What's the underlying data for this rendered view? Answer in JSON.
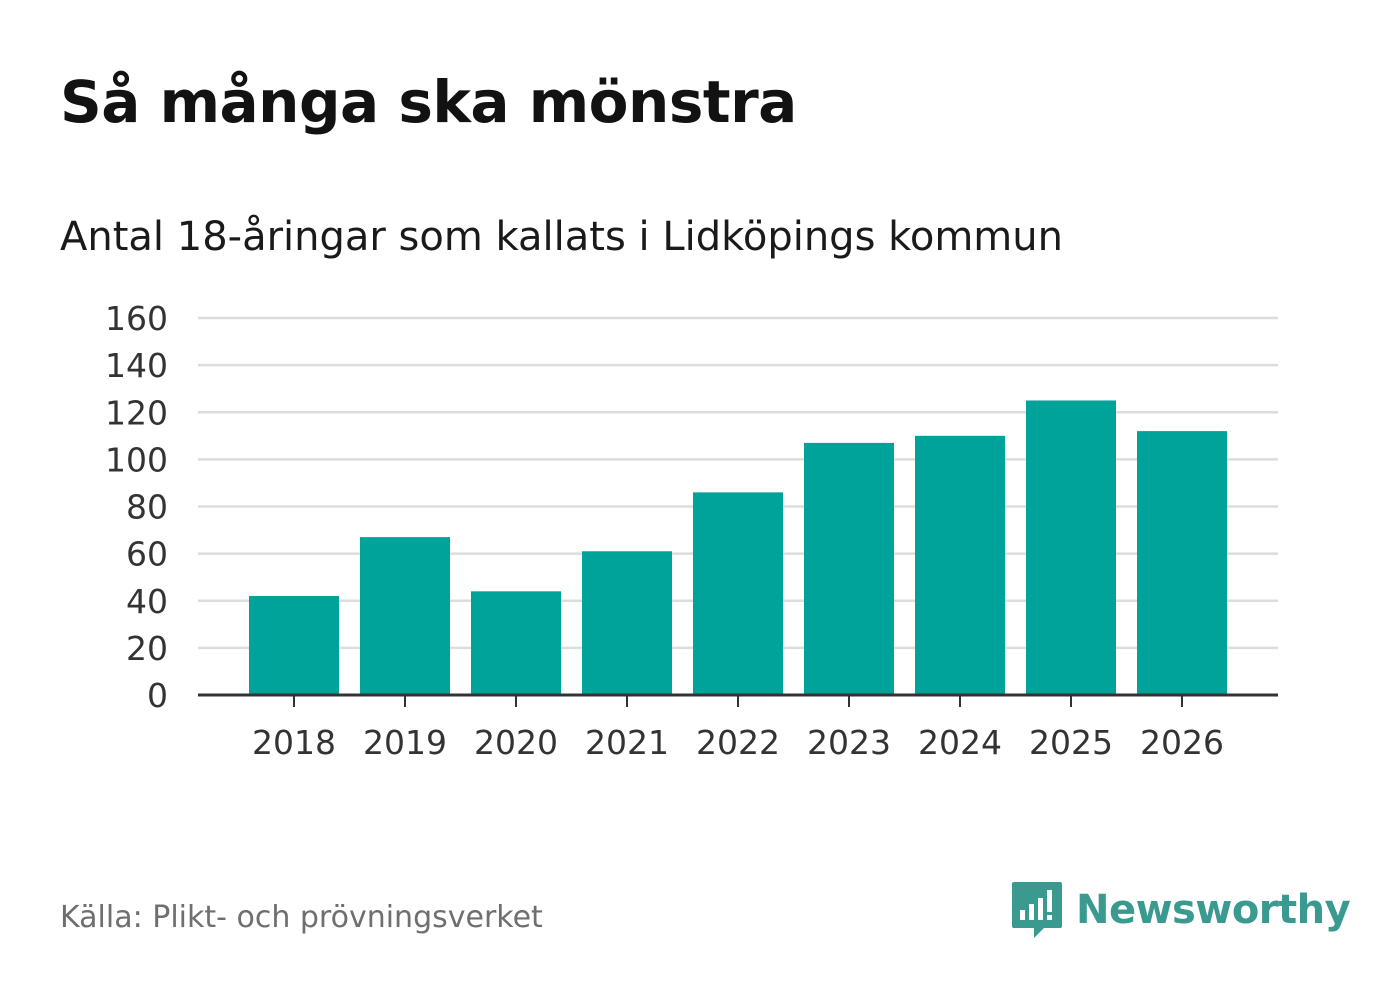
{
  "header": {
    "title": "Så många ska mönstra",
    "subtitle": "Antal 18-åringar som kallats i Lidköpings kommun"
  },
  "footer": {
    "source": "Källa: Plikt- och prövningsverket",
    "brand": "Newsworthy",
    "brand_icon": "newsworthy-logo-icon"
  },
  "colors": {
    "bar": "#00a39a",
    "grid": "#dddddd",
    "axis": "#333333",
    "text": "#333333",
    "brand": "#3a9a90"
  },
  "chart_data": {
    "type": "bar",
    "title": "Så många ska mönstra",
    "subtitle": "Antal 18-åringar som kallats i Lidköpings kommun",
    "xlabel": "",
    "ylabel": "",
    "categories": [
      "2018",
      "2019",
      "2020",
      "2021",
      "2022",
      "2023",
      "2024",
      "2025",
      "2026"
    ],
    "values": [
      42,
      67,
      44,
      61,
      86,
      107,
      110,
      125,
      112
    ],
    "ylim": [
      0,
      160
    ],
    "yticks": [
      0,
      20,
      40,
      60,
      80,
      100,
      120,
      140,
      160
    ],
    "grid": true,
    "legend": "none"
  }
}
